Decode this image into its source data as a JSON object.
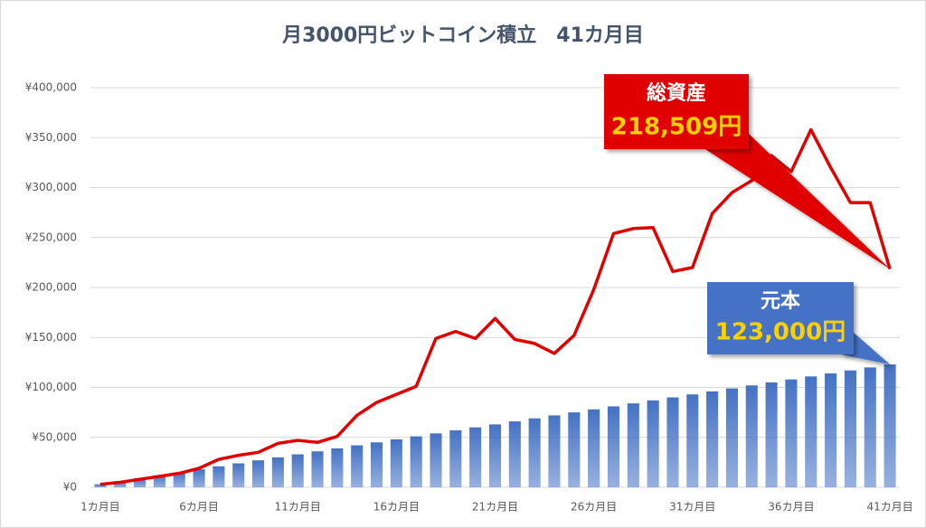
{
  "chart_data": {
    "type": "bar",
    "title": "月3000円ビットコイン積立　41カ月目",
    "categories": [
      "1カ月目",
      null,
      null,
      null,
      null,
      "6カ月目",
      null,
      null,
      null,
      null,
      "11カ月目",
      null,
      null,
      null,
      null,
      "16カ月目",
      null,
      null,
      null,
      null,
      "21カ月目",
      null,
      null,
      null,
      null,
      "26カ月目",
      null,
      null,
      null,
      null,
      "31カ月目",
      null,
      null,
      null,
      null,
      "36カ月目",
      null,
      null,
      null,
      null,
      "41カ月目"
    ],
    "series": [
      {
        "name": "元本",
        "type": "bar",
        "color": "#4472c4",
        "values": [
          3000,
          6000,
          9000,
          12000,
          15000,
          18000,
          21000,
          24000,
          27000,
          30000,
          33000,
          36000,
          39000,
          42000,
          45000,
          48000,
          51000,
          54000,
          57000,
          60000,
          63000,
          66000,
          69000,
          72000,
          75000,
          78000,
          81000,
          84000,
          87000,
          90000,
          93000,
          96000,
          99000,
          102000,
          105000,
          108000,
          111000,
          114000,
          117000,
          120000,
          123000
        ],
        "value_labels": [
          null,
          null,
          null,
          null,
          null,
          null,
          null,
          null,
          null,
          null,
          null,
          null,
          null,
          null,
          null,
          null,
          null,
          null,
          null,
          null,
          null,
          null,
          null,
          null,
          null,
          null,
          null,
          null,
          null,
          null,
          null,
          null,
          null,
          null,
          null,
          null,
          null,
          null,
          null,
          null,
          "123,000円"
        ]
      },
      {
        "name": "総資産",
        "type": "line",
        "color": "#e00000",
        "values": [
          3000,
          5000,
          8000,
          11000,
          14000,
          19000,
          28000,
          32000,
          35000,
          44000,
          47000,
          45000,
          51000,
          72000,
          85000,
          93000,
          101000,
          149000,
          156000,
          149000,
          169000,
          148000,
          144000,
          134000,
          152000,
          198000,
          254000,
          259000,
          260000,
          216000,
          220000,
          274000,
          295000,
          307000,
          332000,
          316000,
          358000,
          320000,
          285000,
          285000,
          218509
        ],
        "value_labels": [
          null,
          null,
          null,
          null,
          null,
          null,
          null,
          null,
          null,
          null,
          null,
          null,
          null,
          null,
          null,
          null,
          null,
          null,
          null,
          null,
          null,
          null,
          null,
          null,
          null,
          null,
          null,
          null,
          null,
          null,
          null,
          null,
          null,
          null,
          null,
          null,
          null,
          null,
          null,
          null,
          "218,509円"
        ]
      }
    ],
    "ylim": [
      0,
      400000
    ],
    "yticks": [
      {
        "value": 0,
        "label": "¥0"
      },
      {
        "value": 50000,
        "label": "¥50,000"
      },
      {
        "value": 100000,
        "label": "¥100,000"
      },
      {
        "value": 150000,
        "label": "¥150,000"
      },
      {
        "value": 200000,
        "label": "¥200,000"
      },
      {
        "value": 250000,
        "label": "¥250,000"
      },
      {
        "value": 300000,
        "label": "¥300,000"
      },
      {
        "value": 350000,
        "label": "¥350,000"
      },
      {
        "value": 400000,
        "label": "¥400,000"
      }
    ],
    "grid": true
  }
}
